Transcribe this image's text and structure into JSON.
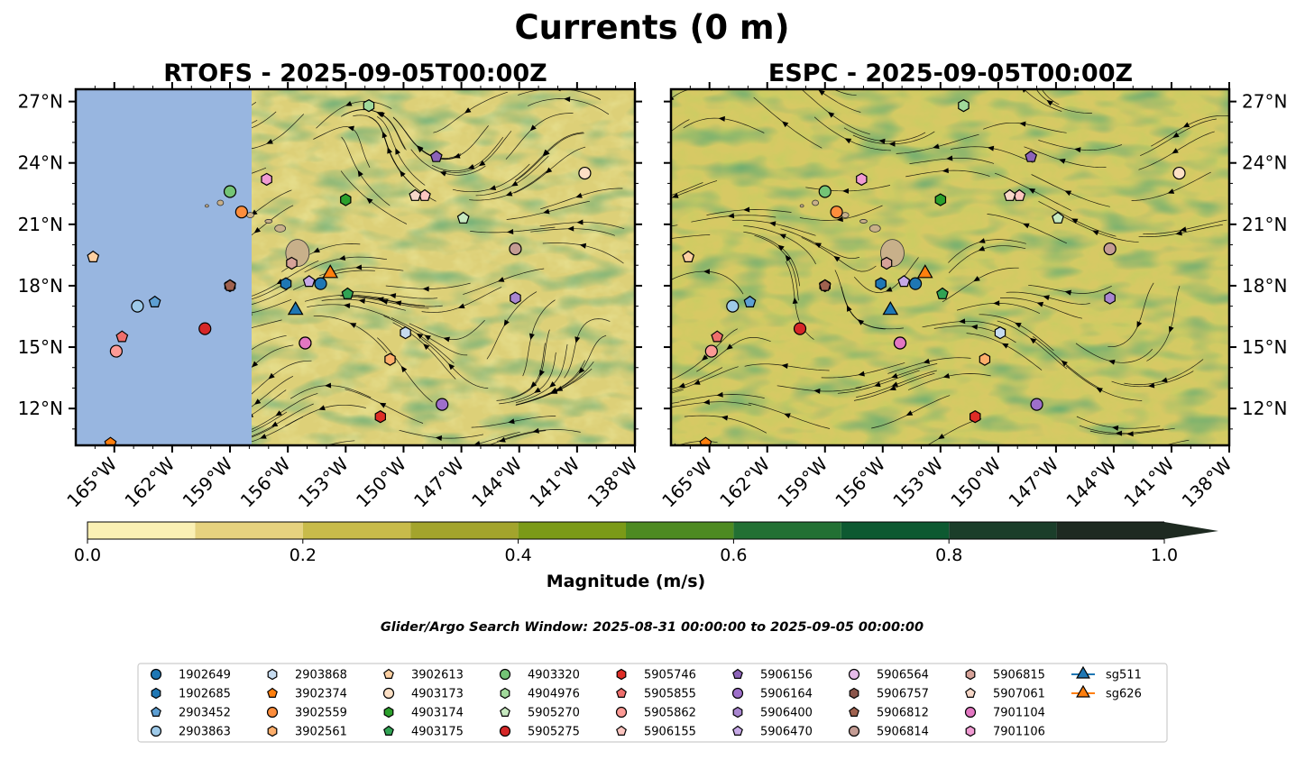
{
  "figure": {
    "title": "Currents (0 m)",
    "search_window": "Glider/Argo Search Window: 2025-08-31 00:00:00 to 2025-09-05 00:00:00"
  },
  "colors": {
    "ocean_mask": "#98b6e0",
    "land": "#c8b08a",
    "magnitude_scale": [
      "#faf0b4",
      "#e6d27f",
      "#c8bb4a",
      "#a3a42c",
      "#7b9a17",
      "#4d8a21",
      "#227033",
      "#0d5931",
      "#1b3e2a",
      "#1e2a21"
    ]
  },
  "chart_data": [
    {
      "type": "map",
      "title": "RTOFS - 2025-09-05T00:00Z",
      "model": "RTOFS",
      "lon_range": [
        -167,
        -138
      ],
      "lat_range": [
        10.2,
        27.6
      ],
      "masked_region_lon": [
        -167,
        -157.9
      ],
      "x_ticks": [
        "165°W",
        "162°W",
        "159°W",
        "156°W",
        "153°W",
        "150°W",
        "147°W",
        "144°W",
        "141°W",
        "138°W"
      ],
      "y_ticks": [
        "27°N",
        "24°N",
        "21°N",
        "18°N",
        "15°N",
        "12°N"
      ]
    },
    {
      "type": "map",
      "title": "ESPC - 2025-09-05T00:00Z",
      "model": "ESPC",
      "lon_range": [
        -167,
        -138
      ],
      "lat_range": [
        10.2,
        27.6
      ],
      "x_ticks": [
        "165°W",
        "162°W",
        "159°W",
        "156°W",
        "153°W",
        "150°W",
        "147°W",
        "144°W",
        "141°W",
        "138°W"
      ],
      "y_ticks": [
        "27°N",
        "24°N",
        "21°N",
        "18°N",
        "15°N",
        "12°N"
      ]
    }
  ],
  "colorbar": {
    "label": "Magnitude (m/s)",
    "levels": [
      0.0,
      0.1,
      0.2,
      0.3,
      0.4,
      0.5,
      0.6,
      0.7,
      0.8,
      0.9,
      1.0
    ],
    "tick_values": [
      0.0,
      0.2,
      0.4,
      0.6,
      0.8,
      1.0
    ],
    "tick_labels": [
      "0.0",
      "0.2",
      "0.4",
      "0.6",
      "0.8",
      "1.0"
    ],
    "extend": "max"
  },
  "observations": [
    {
      "id": "1902649",
      "kind": "argo",
      "marker": "circle",
      "color": "#1f77b4",
      "lon": -154.3,
      "lat": 18.1
    },
    {
      "id": "1902685",
      "kind": "argo",
      "marker": "hexagon",
      "color": "#1f77b4",
      "lon": -156.1,
      "lat": 18.1
    },
    {
      "id": "2903452",
      "kind": "argo",
      "marker": "pentagon",
      "color": "#5d9fd3",
      "lon": -162.9,
      "lat": 17.2
    },
    {
      "id": "2903863",
      "kind": "argo",
      "marker": "circle",
      "color": "#9ecae9",
      "lon": -163.8,
      "lat": 17.0
    },
    {
      "id": "2903868",
      "kind": "argo",
      "marker": "hexagon",
      "color": "#c6dbef",
      "lon": -149.9,
      "lat": 15.7
    },
    {
      "id": "3902374",
      "kind": "argo",
      "marker": "pentagon",
      "color": "#ff7f0e",
      "lon": -165.2,
      "lat": 10.3
    },
    {
      "id": "3902559",
      "kind": "argo",
      "marker": "circle",
      "color": "#fd8d3c",
      "lon": -158.4,
      "lat": 21.6
    },
    {
      "id": "3902561",
      "kind": "argo",
      "marker": "hexagon",
      "color": "#fdae6b",
      "lon": -150.7,
      "lat": 14.4
    },
    {
      "id": "3902613",
      "kind": "argo",
      "marker": "pentagon",
      "color": "#fdd0a2",
      "lon": -166.1,
      "lat": 19.4
    },
    {
      "id": "4903173",
      "kind": "argo",
      "marker": "circle",
      "color": "#fde0c5",
      "lon": -140.6,
      "lat": 23.5
    },
    {
      "id": "4903174",
      "kind": "argo",
      "marker": "hexagon",
      "color": "#2ca02c",
      "lon": -153.0,
      "lat": 22.2
    },
    {
      "id": "4903175",
      "kind": "argo",
      "marker": "pentagon",
      "color": "#31a354",
      "lon": -152.9,
      "lat": 17.6
    },
    {
      "id": "4903320",
      "kind": "argo",
      "marker": "circle",
      "color": "#74c476",
      "lon": -159.0,
      "lat": 22.6
    },
    {
      "id": "4904976",
      "kind": "argo",
      "marker": "hexagon",
      "color": "#a1d99b",
      "lon": -151.8,
      "lat": 26.8
    },
    {
      "id": "5905270",
      "kind": "argo",
      "marker": "pentagon",
      "color": "#c7e9c0",
      "lon": -146.9,
      "lat": 21.3
    },
    {
      "id": "5905275",
      "kind": "argo",
      "marker": "circle",
      "color": "#d62728",
      "lon": -160.3,
      "lat": 15.9
    },
    {
      "id": "5905746",
      "kind": "argo",
      "marker": "hexagon",
      "color": "#de2d26",
      "lon": -151.2,
      "lat": 11.6
    },
    {
      "id": "5905855",
      "kind": "argo",
      "marker": "pentagon",
      "color": "#ef6f6c",
      "lon": -164.6,
      "lat": 15.5
    },
    {
      "id": "5905862",
      "kind": "argo",
      "marker": "circle",
      "color": "#fc9a95",
      "lon": -164.9,
      "lat": 14.8
    },
    {
      "id": "5906155",
      "kind": "argo",
      "marker": "pentagon",
      "color": "#fcc5c0",
      "lon": -148.9,
      "lat": 22.4
    },
    {
      "id": "5906156",
      "kind": "argo",
      "marker": "pentagon",
      "color": "#8c63b8",
      "lon": -148.3,
      "lat": 24.3
    },
    {
      "id": "5906164",
      "kind": "argo",
      "marker": "circle",
      "color": "#9e6fca",
      "lon": -148.0,
      "lat": 12.2
    },
    {
      "id": "5906400",
      "kind": "argo",
      "marker": "hexagon",
      "color": "#a986d0",
      "lon": -144.2,
      "lat": 17.4
    },
    {
      "id": "5906470",
      "kind": "argo",
      "marker": "pentagon",
      "color": "#c6a9e6",
      "lon": -154.9,
      "lat": 18.2
    },
    {
      "id": "5906564",
      "kind": "argo",
      "marker": "circle",
      "color": "#e6bbe9",
      "lon": -155.1,
      "lat": 15.2
    },
    {
      "id": "5906757",
      "kind": "argo",
      "marker": "hexagon",
      "color": "#8c564b",
      "lon": -159.0,
      "lat": 18.0
    },
    {
      "id": "5906812",
      "kind": "argo",
      "marker": "pentagon",
      "color": "#a0624f",
      "lon": -159.0,
      "lat": 18.0
    },
    {
      "id": "5906814",
      "kind": "argo",
      "marker": "circle",
      "color": "#c49c94",
      "lon": -144.2,
      "lat": 19.8
    },
    {
      "id": "5906815",
      "kind": "argo",
      "marker": "hexagon",
      "color": "#d6a298",
      "lon": -155.8,
      "lat": 19.1
    },
    {
      "id": "5907061",
      "kind": "argo",
      "marker": "pentagon",
      "color": "#f7d8c8",
      "lon": -149.4,
      "lat": 22.4
    },
    {
      "id": "7901104",
      "kind": "argo",
      "marker": "circle",
      "color": "#e377c2",
      "lon": -155.1,
      "lat": 15.2
    },
    {
      "id": "7901106",
      "kind": "argo",
      "marker": "hexagon",
      "color": "#f09bd3",
      "lon": -157.1,
      "lat": 23.2
    },
    {
      "id": "sg511",
      "kind": "glider",
      "marker": "triangle",
      "color": "#1f77b4",
      "lon": -155.6,
      "lat": 16.8
    },
    {
      "id": "sg626",
      "kind": "glider",
      "marker": "triangle",
      "color": "#ff7f0e",
      "lon": -153.8,
      "lat": 18.6
    }
  ]
}
